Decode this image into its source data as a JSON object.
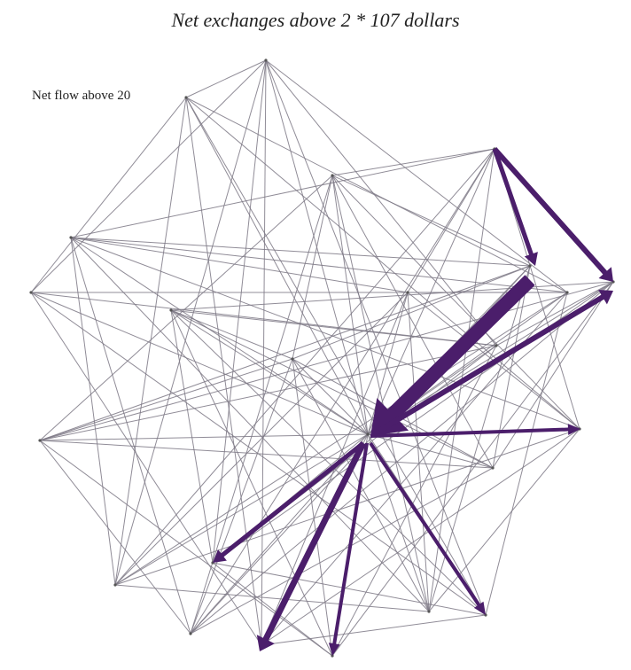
{
  "title": "Net exchanges above 2 * 107 dollars",
  "subtitle": "Net flow above 20",
  "colors": {
    "edge": "#7d7885",
    "flow": "#4b1e6b",
    "background": "#ffffff"
  },
  "node_count": 24,
  "highlighted_flow_count": 9
}
